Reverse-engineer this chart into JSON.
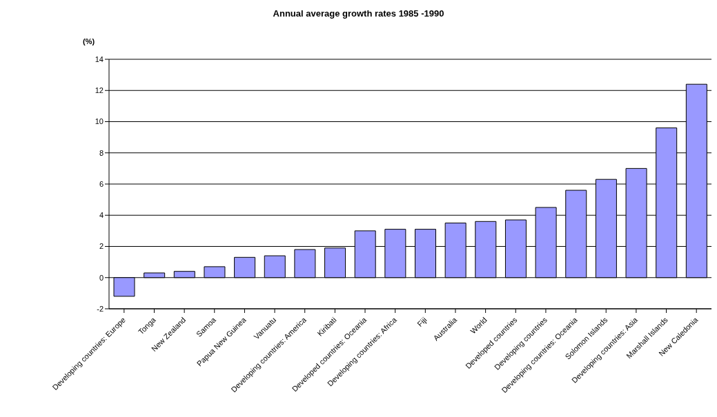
{
  "chart_data": {
    "type": "bar",
    "title": "Annual average growth rates 1985 -1990",
    "ylabel": "(%)",
    "categories": [
      "Developing countries: Europe",
      "Tonga",
      "New Zealand",
      "Samoa",
      "Papua New Guinea",
      "Vanuatu",
      "Developing countries: America",
      "Kiribati",
      "Developed countries: Oceania",
      "Developing countries: Africa",
      "Fiji",
      "Australia",
      "World",
      "Developed countries",
      "Developing countries",
      "Developing countries: Oceania",
      "Solomon Islands",
      "Developing countries: Asia",
      "Marshall Islands",
      "New Caledonia"
    ],
    "values": [
      -1.2,
      0.3,
      0.4,
      0.7,
      1.3,
      1.4,
      1.8,
      1.9,
      3.0,
      3.1,
      3.1,
      3.5,
      3.6,
      3.7,
      4.5,
      5.6,
      6.3,
      7.0,
      9.6,
      12.4
    ],
    "color": "#9999ff",
    "ylim": [
      -2,
      14
    ],
    "yticks": [
      -2,
      0,
      2,
      4,
      6,
      8,
      10,
      12,
      14
    ],
    "grid": "y",
    "legend": false
  }
}
